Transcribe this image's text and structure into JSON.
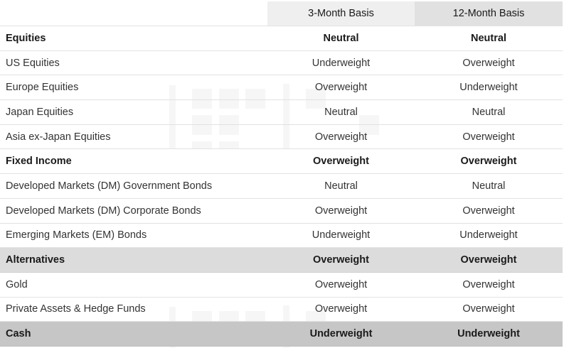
{
  "columns": {
    "three_month": "3-Month Basis",
    "twelve_month": "12-Month Basis"
  },
  "rows": [
    {
      "label": "Equities",
      "three_month": "Neutral",
      "twelve_month": "Neutral",
      "type": "group",
      "shade": "#ffffff"
    },
    {
      "label": "US Equities",
      "three_month": "Underweight",
      "twelve_month": "Overweight",
      "type": "item"
    },
    {
      "label": "Europe Equities",
      "three_month": "Overweight",
      "twelve_month": "Underweight",
      "type": "item"
    },
    {
      "label": "Japan Equities",
      "three_month": "Neutral",
      "twelve_month": "Neutral",
      "type": "item"
    },
    {
      "label": "Asia ex-Japan Equities",
      "three_month": "Overweight",
      "twelve_month": "Overweight",
      "type": "item"
    },
    {
      "label": "Fixed Income",
      "three_month": "Overweight",
      "twelve_month": "Overweight",
      "type": "group",
      "shade": "#ffffff"
    },
    {
      "label": "Developed Markets (DM) Government Bonds",
      "three_month": "Neutral",
      "twelve_month": "Neutral",
      "type": "item"
    },
    {
      "label": "Developed Markets (DM) Corporate Bonds",
      "three_month": "Overweight",
      "twelve_month": "Overweight",
      "type": "item"
    },
    {
      "label": "Emerging Markets (EM) Bonds",
      "three_month": "Underweight",
      "twelve_month": "Underweight",
      "type": "item"
    },
    {
      "label": "Alternatives",
      "three_month": "Overweight",
      "twelve_month": "Overweight",
      "type": "group",
      "shade": "#dcdcdc"
    },
    {
      "label": "Gold",
      "three_month": "Overweight",
      "twelve_month": "Overweight",
      "type": "item"
    },
    {
      "label": "Private Assets & Hedge Funds",
      "three_month": "Overweight",
      "twelve_month": "Overweight",
      "type": "item"
    },
    {
      "label": "Cash",
      "three_month": "Underweight",
      "twelve_month": "Underweight",
      "type": "group",
      "shade": "#c6c6c6"
    }
  ]
}
